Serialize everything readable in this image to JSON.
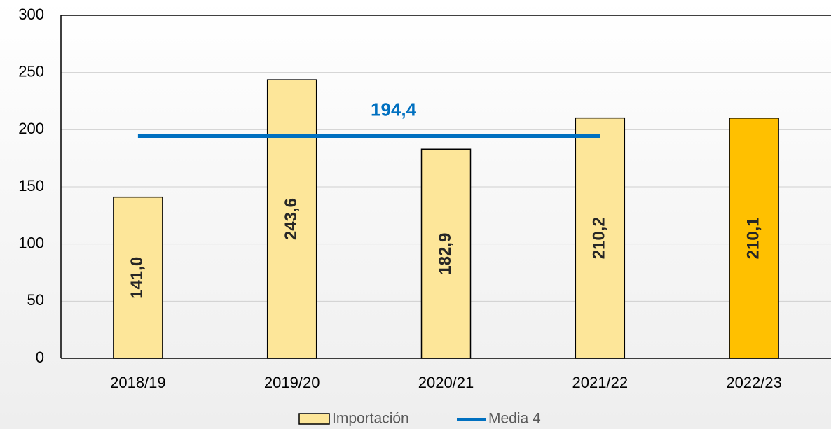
{
  "chart_data": {
    "type": "bar",
    "categories": [
      "2018/19",
      "2019/20",
      "2020/21",
      "2021/22",
      "2022/23"
    ],
    "series": [
      {
        "name": "Importación",
        "type": "bar",
        "colors": [
          "#fde699",
          "#fde699",
          "#fde699",
          "#fde699",
          "#ffc000"
        ],
        "values": [
          141.0,
          243.6,
          182.9,
          210.2,
          210.1
        ],
        "value_labels": [
          "141,0",
          "243,6",
          "182,9",
          "210,2",
          "210,1"
        ]
      },
      {
        "name": "Media 4",
        "type": "line",
        "color": "#0070c0",
        "values": [
          194.4,
          194.4,
          194.4,
          194.4,
          null
        ],
        "label": "194,4"
      }
    ],
    "ylim": [
      0,
      300
    ],
    "yticks": [
      0,
      50,
      100,
      150,
      200,
      250,
      300
    ],
    "grid": true
  }
}
